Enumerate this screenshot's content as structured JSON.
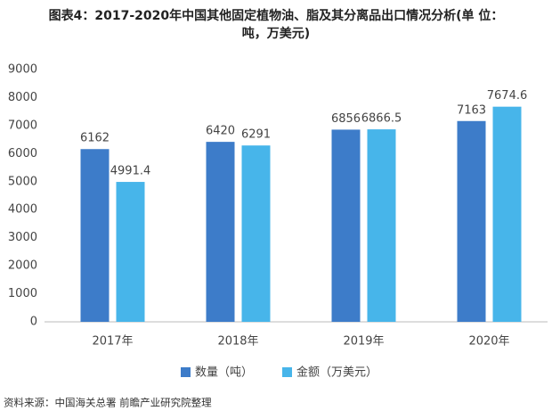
{
  "chart_data": {
    "type": "bar",
    "title": [
      "图表4：2017-2020年中国其他固定植物油、脂及其分离品出口情况分析(单 位：",
      "吨，万美元)"
    ],
    "categories": [
      "2017年",
      "2018年",
      "2019年",
      "2020年"
    ],
    "series": [
      {
        "name": "数量（吨）",
        "color": "#3d7cc9",
        "values": [
          6162,
          6420,
          6856,
          7163
        ]
      },
      {
        "name": "金额（万美元）",
        "color": "#47b5ea",
        "values": [
          4991.4,
          6291,
          6866.5,
          7674.6
        ]
      }
    ],
    "ylim": [
      0,
      9000
    ],
    "yticks": [
      0,
      1000,
      2000,
      3000,
      4000,
      5000,
      6000,
      7000,
      8000,
      9000
    ],
    "grid": false,
    "legend": "bottom",
    "source": "资料来源：中国海关总署 前瞻产业研究院整理"
  }
}
